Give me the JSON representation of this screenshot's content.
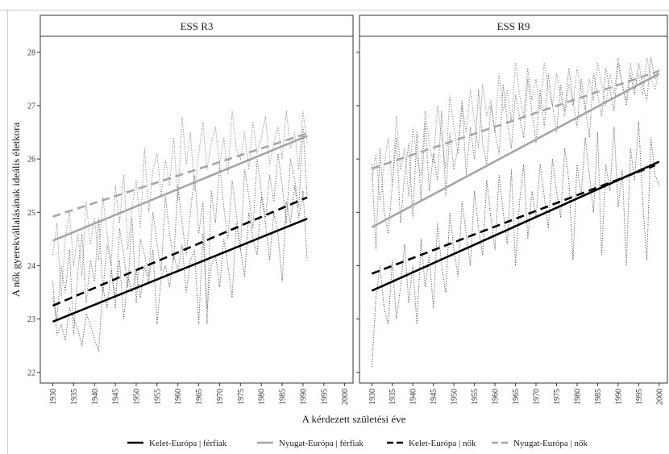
{
  "chart_data": {
    "type": "line",
    "ylabel": "A nők gyerekvállalásának ideális életkora",
    "xlabel": "A kérdezett születési éve",
    "xlim": [
      1927,
      2002
    ],
    "ylim": [
      21.8,
      28.3
    ],
    "x_ticks": [
      1930,
      1935,
      1940,
      1945,
      1950,
      1955,
      1960,
      1965,
      1970,
      1975,
      1980,
      1985,
      1990,
      1995,
      2000
    ],
    "y_ticks": [
      22,
      23,
      24,
      25,
      26,
      27,
      28
    ],
    "legend_position": "bottom",
    "series_styles": [
      {
        "name": "Kelet-Európa | férfiak",
        "color": "#000000",
        "dash": "solid"
      },
      {
        "name": "Nyugat-Európa | férfiak",
        "color": "#a6a6a6",
        "dash": "solid"
      },
      {
        "name": "Kelet-Európa | nők",
        "color": "#000000",
        "dash": "dashed"
      },
      {
        "name": "Nyugat-Európa | nők",
        "color": "#a6a6a6",
        "dash": "dashed"
      }
    ],
    "panels": [
      {
        "title": "ESS R3",
        "trend_lines": [
          {
            "name": "Kelet-Európa | férfiak",
            "x": [
              1930,
              1991
            ],
            "y": [
              22.95,
              24.88
            ]
          },
          {
            "name": "Nyugat-Európa | férfiak",
            "x": [
              1930,
              1991
            ],
            "y": [
              24.47,
              26.43
            ]
          },
          {
            "name": "Kelet-Európa | nők",
            "x": [
              1930,
              1991
            ],
            "y": [
              23.25,
              25.28
            ]
          },
          {
            "name": "Nyugat-Európa | nők",
            "x": [
              1930,
              1991
            ],
            "y": [
              24.92,
              26.48
            ]
          }
        ],
        "raw_series": [
          {
            "color": "#555555",
            "x": [
              1930,
              1931,
              1932,
              1933,
              1934,
              1935,
              1936,
              1937,
              1938,
              1939,
              1940,
              1941,
              1942,
              1943,
              1944,
              1945,
              1946,
              1947,
              1948,
              1949,
              1950,
              1951,
              1952,
              1953,
              1954,
              1955,
              1956,
              1957,
              1958,
              1959,
              1960,
              1961,
              1962,
              1963,
              1964,
              1965,
              1966,
              1967,
              1968,
              1969,
              1970,
              1971,
              1972,
              1973,
              1974,
              1975,
              1976,
              1977,
              1978,
              1979,
              1980,
              1981,
              1982,
              1983,
              1984,
              1985,
              1986,
              1987,
              1988,
              1989,
              1990,
              1991
            ],
            "y": [
              23.7,
              22.7,
              22.9,
              22.6,
              23.2,
              23.0,
              22.8,
              22.5,
              23.1,
              22.9,
              22.6,
              22.4,
              23.6,
              23.2,
              23.9,
              23.4,
              24.1,
              23.0,
              23.8,
              23.5,
              23.9,
              23.4,
              24.0,
              23.7,
              24.3,
              22.9,
              23.8,
              24.0,
              23.6,
              24.2,
              23.9,
              24.4,
              23.5,
              24.1,
              24.3,
              22.9,
              24.6,
              23.2,
              24.0,
              24.2,
              23.6,
              24.5,
              24.0,
              23.4,
              24.8,
              24.3,
              23.8,
              25.0,
              24.5,
              24.2,
              25.3,
              24.8,
              24.1,
              25.0,
              24.6,
              23.7,
              25.2,
              24.8,
              25.5,
              24.9,
              25.4,
              24.1
            ]
          },
          {
            "color": "#888888",
            "x": [
              1930,
              1931,
              1932,
              1933,
              1934,
              1935,
              1936,
              1937,
              1938,
              1939,
              1940,
              1941,
              1942,
              1943,
              1944,
              1945,
              1946,
              1947,
              1948,
              1949,
              1950,
              1951,
              1952,
              1953,
              1954,
              1955,
              1956,
              1957,
              1958,
              1959,
              1960,
              1961,
              1962,
              1963,
              1964,
              1965,
              1966,
              1967,
              1968,
              1969,
              1970,
              1971,
              1972,
              1973,
              1974,
              1975,
              1976,
              1977,
              1978,
              1979,
              1980,
              1981,
              1982,
              1983,
              1984,
              1985,
              1986,
              1987,
              1988,
              1989,
              1990,
              1991
            ],
            "y": [
              24.2,
              24.8,
              23.4,
              24.5,
              25.0,
              24.0,
              24.6,
              23.8,
              25.2,
              24.4,
              24.9,
              24.1,
              25.3,
              24.6,
              24.0,
              25.5,
              24.8,
              25.7,
              24.3,
              25.1,
              25.6,
              24.7,
              26.2,
              25.0,
              25.8,
              26.1,
              25.3,
              26.0,
              25.5,
              26.4,
              25.2,
              26.8,
              25.9,
              26.5,
              25.4,
              26.1,
              26.7,
              25.8,
              26.3,
              26.6,
              25.9,
              26.4,
              25.7,
              26.9,
              26.2,
              26.0,
              26.5,
              25.8,
              26.7,
              26.1,
              26.4,
              26.8,
              25.9,
              26.3,
              26.6,
              26.0,
              26.9,
              26.2,
              26.5,
              25.8,
              26.9,
              26.3
            ]
          },
          {
            "color": "#666666",
            "x": [
              1930,
              1931,
              1932,
              1933,
              1934,
              1935,
              1936,
              1937,
              1938,
              1939,
              1940,
              1941,
              1942,
              1943,
              1944,
              1945,
              1946,
              1947,
              1948,
              1949,
              1950,
              1951,
              1952,
              1953,
              1954,
              1955,
              1956,
              1957,
              1958,
              1959,
              1960,
              1961,
              1962,
              1963,
              1964,
              1965,
              1966,
              1967,
              1968,
              1969,
              1970,
              1971,
              1972,
              1973,
              1974,
              1975,
              1976,
              1977,
              1978,
              1979,
              1980,
              1981,
              1982,
              1983,
              1984,
              1985,
              1986,
              1987,
              1988,
              1989,
              1990,
              1991
            ],
            "y": [
              23.4,
              23.0,
              24.0,
              23.5,
              24.3,
              22.7,
              23.9,
              24.6,
              23.3,
              24.1,
              23.7,
              24.9,
              23.5,
              24.4,
              24.0,
              23.2,
              24.7,
              24.2,
              23.6,
              24.9,
              23.3,
              24.5,
              24.2,
              23.8,
              25.0,
              24.4,
              23.9,
              25.3,
              24.6,
              24.1,
              25.5,
              24.8,
              24.2,
              25.0,
              25.7,
              24.6,
              25.2,
              22.9,
              25.4,
              24.8,
              25.9,
              25.1,
              24.5,
              25.6,
              25.0,
              24.3,
              25.8,
              25.3,
              24.7,
              26.0,
              25.4,
              24.9,
              25.7,
              25.2,
              26.1,
              25.5,
              24.8,
              26.0,
              25.6,
              25.1,
              26.6,
              25.3
            ]
          }
        ]
      },
      {
        "title": "ESS R9",
        "trend_lines": [
          {
            "name": "Kelet-Európa | férfiak",
            "x": [
              1930,
              2000
            ],
            "y": [
              23.53,
              25.95
            ]
          },
          {
            "name": "Nyugat-Európa | férfiak",
            "x": [
              1930,
              2000
            ],
            "y": [
              24.72,
              27.6
            ]
          },
          {
            "name": "Kelet-Európa | nők",
            "x": [
              1930,
              1999
            ],
            "y": [
              23.85,
              25.88
            ]
          },
          {
            "name": "Nyugat-Európa | nők",
            "x": [
              1930,
              2000
            ],
            "y": [
              25.82,
              27.65
            ]
          }
        ],
        "raw_series": [
          {
            "color": "#555555",
            "x": [
              1930,
              1931,
              1932,
              1933,
              1934,
              1935,
              1936,
              1937,
              1938,
              1939,
              1940,
              1941,
              1942,
              1943,
              1944,
              1945,
              1946,
              1947,
              1948,
              1949,
              1950,
              1951,
              1952,
              1953,
              1954,
              1955,
              1956,
              1957,
              1958,
              1959,
              1960,
              1961,
              1962,
              1963,
              1964,
              1965,
              1966,
              1967,
              1968,
              1969,
              1970,
              1971,
              1972,
              1973,
              1974,
              1975,
              1976,
              1977,
              1978,
              1979,
              1980,
              1981,
              1982,
              1983,
              1984,
              1985,
              1986,
              1987,
              1988,
              1989,
              1990,
              1991,
              1992,
              1993,
              1994,
              1995,
              1996,
              1997,
              1998,
              1999,
              2000
            ],
            "y": [
              22.1,
              23.4,
              24.0,
              23.2,
              22.9,
              24.1,
              23.0,
              23.6,
              24.4,
              23.3,
              24.0,
              22.9,
              24.5,
              23.6,
              24.2,
              23.2,
              24.8,
              24.0,
              23.5,
              25.0,
              24.3,
              23.8,
              25.2,
              24.6,
              24.0,
              25.4,
              24.7,
              24.2,
              25.6,
              24.9,
              24.3,
              25.7,
              25.0,
              24.4,
              25.8,
              24.0,
              25.2,
              25.9,
              24.5,
              25.4,
              24.9,
              25.9,
              25.3,
              24.7,
              26.0,
              25.4,
              24.9,
              26.2,
              25.6,
              24.1,
              25.9,
              25.3,
              26.4,
              25.7,
              25.0,
              26.5,
              24.2,
              25.9,
              25.4,
              26.6,
              25.1,
              25.8,
              24.0,
              26.2,
              25.6,
              26.7,
              25.2,
              24.1,
              26.4,
              25.7,
              25.5
            ]
          },
          {
            "color": "#888888",
            "x": [
              1930,
              1931,
              1932,
              1933,
              1934,
              1935,
              1936,
              1937,
              1938,
              1939,
              1940,
              1941,
              1942,
              1943,
              1944,
              1945,
              1946,
              1947,
              1948,
              1949,
              1950,
              1951,
              1952,
              1953,
              1954,
              1955,
              1956,
              1957,
              1958,
              1959,
              1960,
              1961,
              1962,
              1963,
              1964,
              1965,
              1966,
              1967,
              1968,
              1969,
              1970,
              1971,
              1972,
              1973,
              1974,
              1975,
              1976,
              1977,
              1978,
              1979,
              1980,
              1981,
              1982,
              1983,
              1984,
              1985,
              1986,
              1987,
              1988,
              1989,
              1990,
              1991,
              1992,
              1993,
              1994,
              1995,
              1996,
              1997,
              1998,
              1999,
              2000
            ],
            "y": [
              25.6,
              26.1,
              25.2,
              25.9,
              26.4,
              25.5,
              26.8,
              25.8,
              26.2,
              25.3,
              26.6,
              26.0,
              25.7,
              26.9,
              26.3,
              25.9,
              27.0,
              26.4,
              25.8,
              27.2,
              26.6,
              26.1,
              27.0,
              26.5,
              27.3,
              26.7,
              26.2,
              27.4,
              26.8,
              27.1,
              26.5,
              27.6,
              26.9,
              27.3,
              26.7,
              27.8,
              27.2,
              26.8,
              27.7,
              27.1,
              27.5,
              26.9,
              27.8,
              27.3,
              27.0,
              27.6,
              27.2,
              26.8,
              27.4,
              27.0,
              27.7,
              27.3,
              26.9,
              27.5,
              27.1,
              27.8,
              27.4,
              27.0,
              27.6,
              27.2,
              27.9,
              27.4,
              27.1,
              27.8,
              27.3,
              27.6,
              27.2,
              27.9,
              27.5,
              27.3,
              27.7
            ]
          },
          {
            "color": "#666666",
            "x": [
              1930,
              1931,
              1932,
              1933,
              1934,
              1935,
              1936,
              1937,
              1938,
              1939,
              1940,
              1941,
              1942,
              1943,
              1944,
              1945,
              1946,
              1947,
              1948,
              1949,
              1950,
              1951,
              1952,
              1953,
              1954,
              1955,
              1956,
              1957,
              1958,
              1959,
              1960,
              1961,
              1962,
              1963,
              1964,
              1965,
              1966,
              1967,
              1968,
              1969,
              1970,
              1971,
              1972,
              1973,
              1974,
              1975,
              1976,
              1977,
              1978,
              1979,
              1980,
              1981,
              1982,
              1983,
              1984,
              1985,
              1986,
              1987,
              1988,
              1989,
              1990,
              1991,
              1992,
              1993,
              1994,
              1995,
              1996,
              1997,
              1998,
              1999,
              2000
            ],
            "y": [
              25.9,
              24.3,
              26.2,
              25.0,
              24.6,
              25.5,
              26.4,
              24.8,
              25.7,
              26.3,
              24.9,
              26.5,
              25.2,
              26.7,
              25.4,
              26.1,
              25.6,
              26.9,
              25.3,
              26.5,
              25.8,
              26.2,
              27.1,
              25.7,
              26.6,
              26.0,
              27.3,
              26.3,
              25.9,
              27.0,
              26.5,
              26.1,
              27.4,
              26.7,
              26.2,
              27.2,
              26.8,
              26.4,
              27.5,
              26.9,
              26.3,
              27.3,
              26.6,
              27.6,
              27.0,
              26.5,
              27.4,
              26.9,
              27.7,
              27.1,
              26.6,
              27.5,
              27.0,
              26.4,
              27.6,
              27.2,
              26.8,
              27.7,
              27.3,
              26.9,
              27.8,
              27.4,
              27.0,
              27.6,
              27.2,
              27.8,
              27.4,
              27.1,
              27.9,
              27.5,
              27.6
            ]
          }
        ]
      }
    ]
  }
}
